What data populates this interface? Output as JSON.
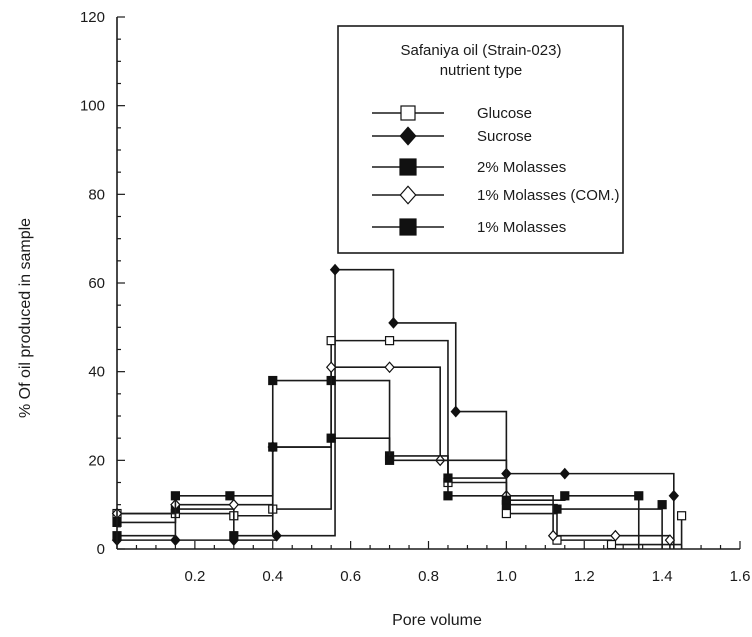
{
  "chart_data": {
    "type": "line",
    "step": true,
    "xlabel": "Pore volume",
    "ylabel": "% Of oil produced in sample",
    "xlim": [
      0,
      1.6
    ],
    "ylim": [
      0,
      120
    ],
    "xticks": [
      "0.2",
      "0.4",
      "0.6",
      "0.8",
      "1.0",
      "1.2",
      "1.4",
      "1.6"
    ],
    "yticks": [
      "0",
      "20",
      "40",
      "60",
      "80",
      "100",
      "120"
    ],
    "legend": {
      "title_line1": "Safaniya oil (Strain-023)",
      "title_line2": "nutrient type",
      "placement": "top-right"
    },
    "series": [
      {
        "name": "Glucose",
        "marker": "square-open",
        "x": [
          0,
          0.15,
          0.3,
          0.4,
          0.55,
          0.7,
          0.85,
          1.0,
          1.13,
          1.27,
          1.45
        ],
        "y": [
          8,
          8,
          7.5,
          9,
          47,
          47,
          15,
          8,
          2,
          1,
          7.5
        ]
      },
      {
        "name": "Sucrose",
        "marker": "diamond-filled",
        "x": [
          0,
          0.15,
          0.3,
          0.41,
          0.56,
          0.71,
          0.87,
          1.0,
          1.15,
          1.43
        ],
        "y": [
          2,
          2,
          2,
          3,
          63,
          51,
          31,
          17,
          17,
          12
        ]
      },
      {
        "name": "2% Molasses",
        "marker": "square-filled",
        "x": [
          0,
          0.15,
          0.3,
          0.4,
          0.55,
          0.7,
          0.85,
          1.0,
          1.13,
          1.4
        ],
        "y": [
          3,
          9,
          3,
          38,
          38,
          21,
          12,
          10,
          9,
          10
        ]
      },
      {
        "name": "1% Molasses (COM.)",
        "marker": "diamond-open",
        "x": [
          0,
          0.15,
          0.3,
          0.4,
          0.55,
          0.7,
          0.83,
          1.0,
          1.12,
          1.28,
          1.42
        ],
        "y": [
          8,
          10,
          10,
          23,
          41,
          41,
          20,
          12,
          3,
          3,
          2
        ]
      },
      {
        "name": "1% Molasses",
        "marker": "square-filled",
        "x": [
          0,
          0.15,
          0.29,
          0.4,
          0.55,
          0.7,
          0.85,
          1.0,
          1.15,
          1.34
        ],
        "y": [
          6,
          12,
          12,
          23,
          25,
          20,
          16,
          11,
          12,
          12
        ]
      }
    ]
  }
}
